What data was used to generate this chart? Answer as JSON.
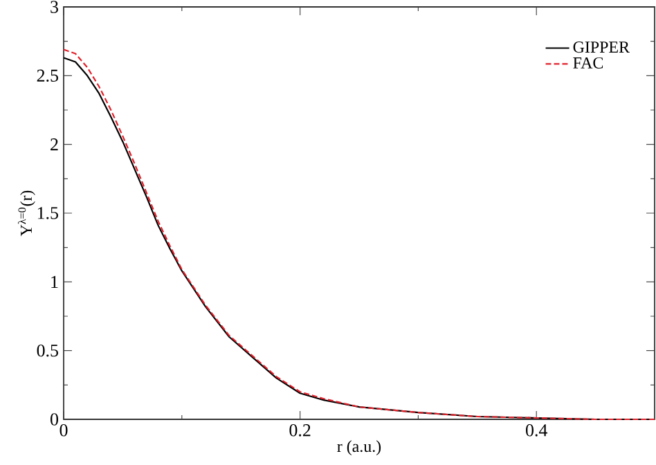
{
  "chart_data": {
    "type": "line",
    "xlabel": "r (a.u.)",
    "ylabel": "Y$^{λ=0}$(r)",
    "xlim": [
      0,
      0.5
    ],
    "ylim": [
      0,
      3
    ],
    "xticks": [
      0,
      0.2,
      0.4
    ],
    "yticks": [
      0,
      0.5,
      1,
      1.5,
      2,
      2.5,
      3
    ],
    "legend": "top right",
    "grid": false,
    "marker": "none",
    "x": [
      0,
      0.01,
      0.02,
      0.03,
      0.04,
      0.05,
      0.06,
      0.07,
      0.08,
      0.09,
      0.1,
      0.12,
      0.14,
      0.16,
      0.18,
      0.2,
      0.22,
      0.25,
      0.3,
      0.35,
      0.4,
      0.45,
      0.5
    ],
    "series": [
      {
        "name": "GIPPER",
        "color": "#000000",
        "line_style": "solid",
        "values": [
          2.63,
          2.6,
          2.5,
          2.37,
          2.2,
          2.02,
          1.82,
          1.62,
          1.41,
          1.24,
          1.08,
          0.82,
          0.6,
          0.45,
          0.3,
          0.19,
          0.14,
          0.09,
          0.05,
          0.02,
          0.01,
          0,
          0
        ]
      },
      {
        "name": "FAC",
        "color": "#e0202a",
        "line_style": "dashed",
        "values": [
          2.69,
          2.66,
          2.56,
          2.42,
          2.25,
          2.06,
          1.86,
          1.65,
          1.44,
          1.26,
          1.09,
          0.83,
          0.61,
          0.46,
          0.31,
          0.2,
          0.15,
          0.09,
          0.05,
          0.02,
          0.01,
          0,
          0
        ]
      }
    ]
  }
}
